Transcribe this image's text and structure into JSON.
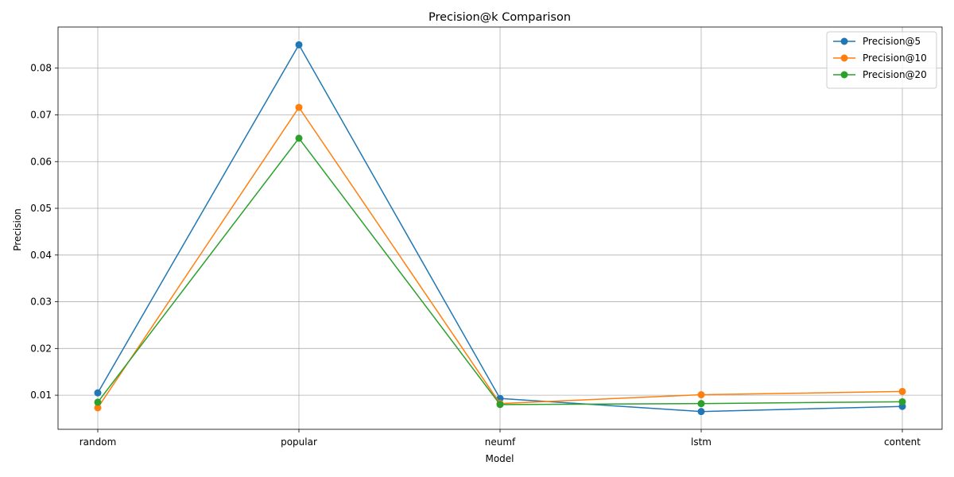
{
  "chart_data": {
    "type": "line",
    "title": "Precision@k Comparison",
    "xlabel": "Model",
    "ylabel": "Precision",
    "categories": [
      "random",
      "popular",
      "neumf",
      "lstm",
      "content"
    ],
    "ylim": [
      0.0027,
      0.0888
    ],
    "yticks": [
      0.01,
      0.02,
      0.03,
      0.04,
      0.05,
      0.06,
      0.07,
      0.08
    ],
    "grid": true,
    "legend_position": "top-right",
    "series": [
      {
        "name": "Precision@5",
        "color": "#1f77b4",
        "values": [
          0.0105,
          0.085,
          0.0093,
          0.0065,
          0.0076
        ]
      },
      {
        "name": "Precision@10",
        "color": "#ff7f0e",
        "values": [
          0.0073,
          0.0716,
          0.0082,
          0.0101,
          0.0108
        ]
      },
      {
        "name": "Precision@20",
        "color": "#2ca02c",
        "values": [
          0.0085,
          0.065,
          0.008,
          0.0082,
          0.0086
        ]
      }
    ]
  }
}
